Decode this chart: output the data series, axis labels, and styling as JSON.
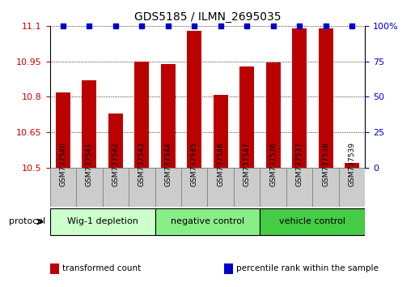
{
  "title": "GDS5185 / ILMN_2695035",
  "samples": [
    "GSM737540",
    "GSM737541",
    "GSM737542",
    "GSM737543",
    "GSM737544",
    "GSM737545",
    "GSM737546",
    "GSM737547",
    "GSM737536",
    "GSM737537",
    "GSM737538",
    "GSM737539"
  ],
  "bar_values": [
    10.82,
    10.87,
    10.73,
    10.95,
    10.94,
    11.08,
    10.81,
    10.93,
    10.945,
    11.09,
    11.09,
    10.52
  ],
  "percentile_values": [
    100,
    100,
    100,
    100,
    100,
    100,
    100,
    100,
    100,
    100,
    100,
    100
  ],
  "bar_color": "#bb0000",
  "percentile_color": "#0000cc",
  "ylim_left": [
    10.5,
    11.1
  ],
  "ylim_right": [
    0,
    100
  ],
  "yticks_left": [
    10.5,
    10.65,
    10.8,
    10.95,
    11.1
  ],
  "yticks_right": [
    0,
    25,
    50,
    75,
    100
  ],
  "groups": [
    {
      "label": "Wig-1 depletion",
      "start": 0,
      "end": 4,
      "color": "#ccffcc"
    },
    {
      "label": "negative control",
      "start": 4,
      "end": 8,
      "color": "#88ee88"
    },
    {
      "label": "vehicle control",
      "start": 8,
      "end": 12,
      "color": "#44cc44"
    }
  ],
  "protocol_label": "protocol",
  "legend_items": [
    {
      "label": "transformed count",
      "color": "#bb0000"
    },
    {
      "label": "percentile rank within the sample",
      "color": "#0000cc"
    }
  ],
  "bar_width": 0.55,
  "background_color": "#ffffff",
  "tick_label_color_left": "#cc0000",
  "tick_label_color_right": "#0000cc",
  "sample_box_color": "#cccccc",
  "sample_box_edge": "#888888"
}
